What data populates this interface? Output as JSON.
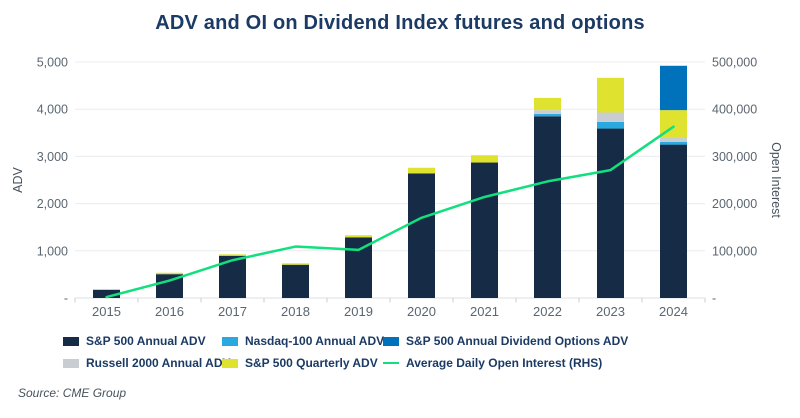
{
  "title": "ADV and OI on Dividend Index futures and options",
  "footer": {
    "source": "Source: CME Group"
  },
  "colors": {
    "sp500_adv": "#162b45",
    "nasdaq_adv": "#29a9e0",
    "options_adv": "#0072bc",
    "russell_adv": "#c7cdd3",
    "quarterly_adv": "#dfe32f",
    "oi_line": "#12df7d",
    "title_navy": "#1b3a64",
    "tick_gray": "#5b6670",
    "gridline": "#e9ecef"
  },
  "chart_data": {
    "type": "bar",
    "subtype": "stacked-bar-with-line",
    "title": "ADV and OI on Dividend Index futures and options",
    "grid": true,
    "legend_position": "bottom",
    "categories": [
      "2015",
      "2016",
      "2017",
      "2018",
      "2019",
      "2020",
      "2021",
      "2022",
      "2023",
      "2024"
    ],
    "series": [
      {
        "name": "S&P 500 Annual ADV",
        "color": "#162b45",
        "values": [
          170,
          505,
          895,
          705,
          1285,
          2640,
          2870,
          3850,
          3590,
          3250
        ]
      },
      {
        "name": "Nasdaq-100 Annual ADV",
        "color": "#29a9e0",
        "values": [
          0,
          0,
          0,
          0,
          0,
          0,
          0,
          50,
          140,
          55
        ]
      },
      {
        "name": "Russell 2000 Annual ADV",
        "color": "#c7cdd3",
        "values": [
          0,
          0,
          0,
          0,
          0,
          0,
          0,
          80,
          200,
          105
        ]
      },
      {
        "name": "S&P 500 Quarterly ADV",
        "color": "#dfe32f",
        "values": [
          20,
          30,
          30,
          30,
          45,
          120,
          155,
          260,
          735,
          570
        ]
      },
      {
        "name": "S&P 500 Annual Dividend Options ADV",
        "color": "#0072bc",
        "values": [
          0,
          0,
          0,
          0,
          0,
          0,
          0,
          0,
          0,
          940
        ]
      }
    ],
    "line": {
      "name": "Average Daily Open Interest (RHS)",
      "color": "#12df7d",
      "axis": "right",
      "values": [
        2000,
        37000,
        80000,
        109000,
        102000,
        170000,
        214000,
        247000,
        271000,
        363000
      ]
    },
    "left_axis": {
      "label": "ADV",
      "min": 0,
      "max": 5000,
      "step": 1000,
      "tick_labels": [
        "-",
        "1,000",
        "2,000",
        "3,000",
        "4,000",
        "5,000"
      ]
    },
    "right_axis": {
      "label": "Open Interest",
      "min": 0,
      "max": 500000,
      "step": 100000,
      "tick_labels": [
        "-",
        "100,000",
        "200,000",
        "300,000",
        "400,000",
        "500,000"
      ]
    },
    "legend": [
      {
        "label": "S&P 500 Annual ADV",
        "color": "#162b45",
        "type": "swatch"
      },
      {
        "label": "Nasdaq-100 Annual ADV",
        "color": "#29a9e0",
        "type": "swatch"
      },
      {
        "label": "S&P 500 Annual Dividend Options ADV",
        "color": "#0072bc",
        "type": "swatch"
      },
      {
        "label": "Russell 2000 Annual ADV",
        "color": "#c7cdd3",
        "type": "swatch"
      },
      {
        "label": "S&P 500 Quarterly ADV",
        "color": "#dfe32f",
        "type": "swatch"
      },
      {
        "label": "Average Daily Open Interest (RHS)",
        "color": "#12df7d",
        "type": "line"
      }
    ]
  }
}
